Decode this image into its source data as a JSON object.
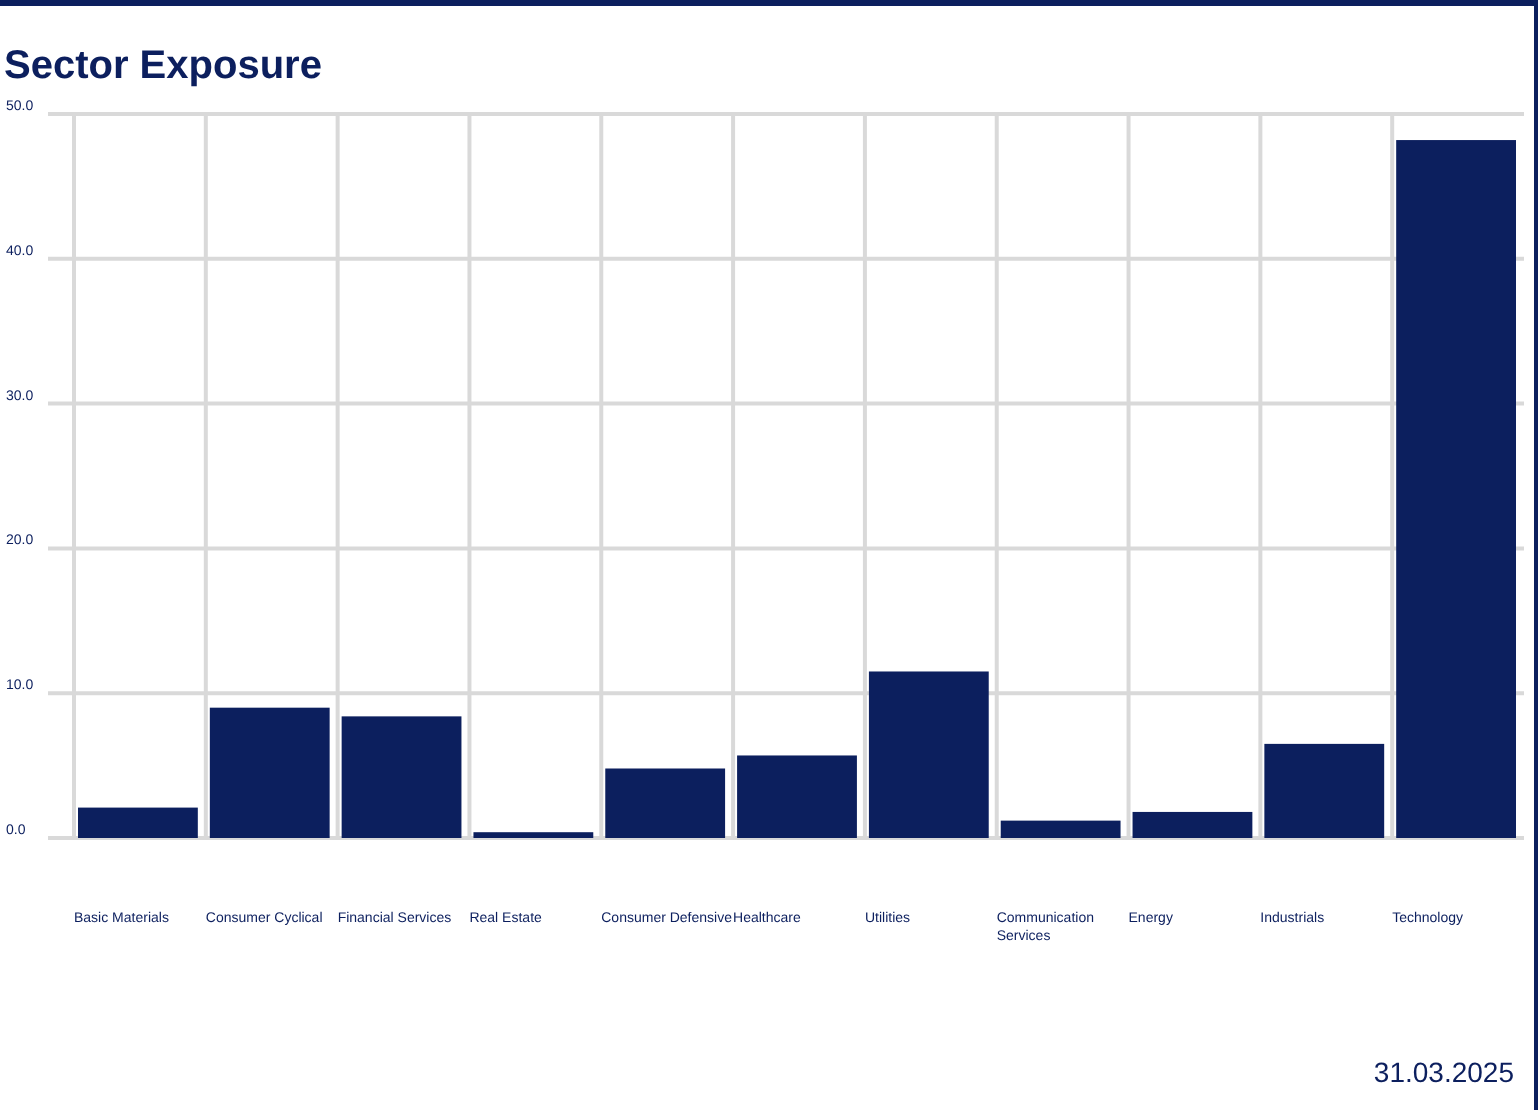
{
  "chart_data": {
    "type": "bar",
    "title": "Sector Exposure",
    "categories": [
      "Basic Materials",
      "Consumer Cyclical",
      "Financial Services",
      "Real Estate",
      "Consumer Defensive",
      "Healthcare",
      "Utilities",
      "Communication Services",
      "Energy",
      "Industrials",
      "Technology"
    ],
    "series": [
      {
        "color": "#0c1f5e",
        "values": [
          2.1,
          9.0,
          8.4,
          0.4,
          4.8,
          5.7,
          11.5,
          1.2,
          1.8,
          6.5,
          48.2
        ]
      }
    ],
    "ylim": [
      0,
      50
    ],
    "yticks": [
      {
        "value": 0,
        "label": "0.0"
      },
      {
        "value": 10,
        "label": "10.0"
      },
      {
        "value": 20,
        "label": "20.0"
      },
      {
        "value": 30,
        "label": "30.0"
      },
      {
        "value": 40,
        "label": "40.0"
      },
      {
        "value": 50,
        "label": "50.0"
      }
    ],
    "grid": true,
    "annotations": [
      "31.03.2025"
    ]
  }
}
